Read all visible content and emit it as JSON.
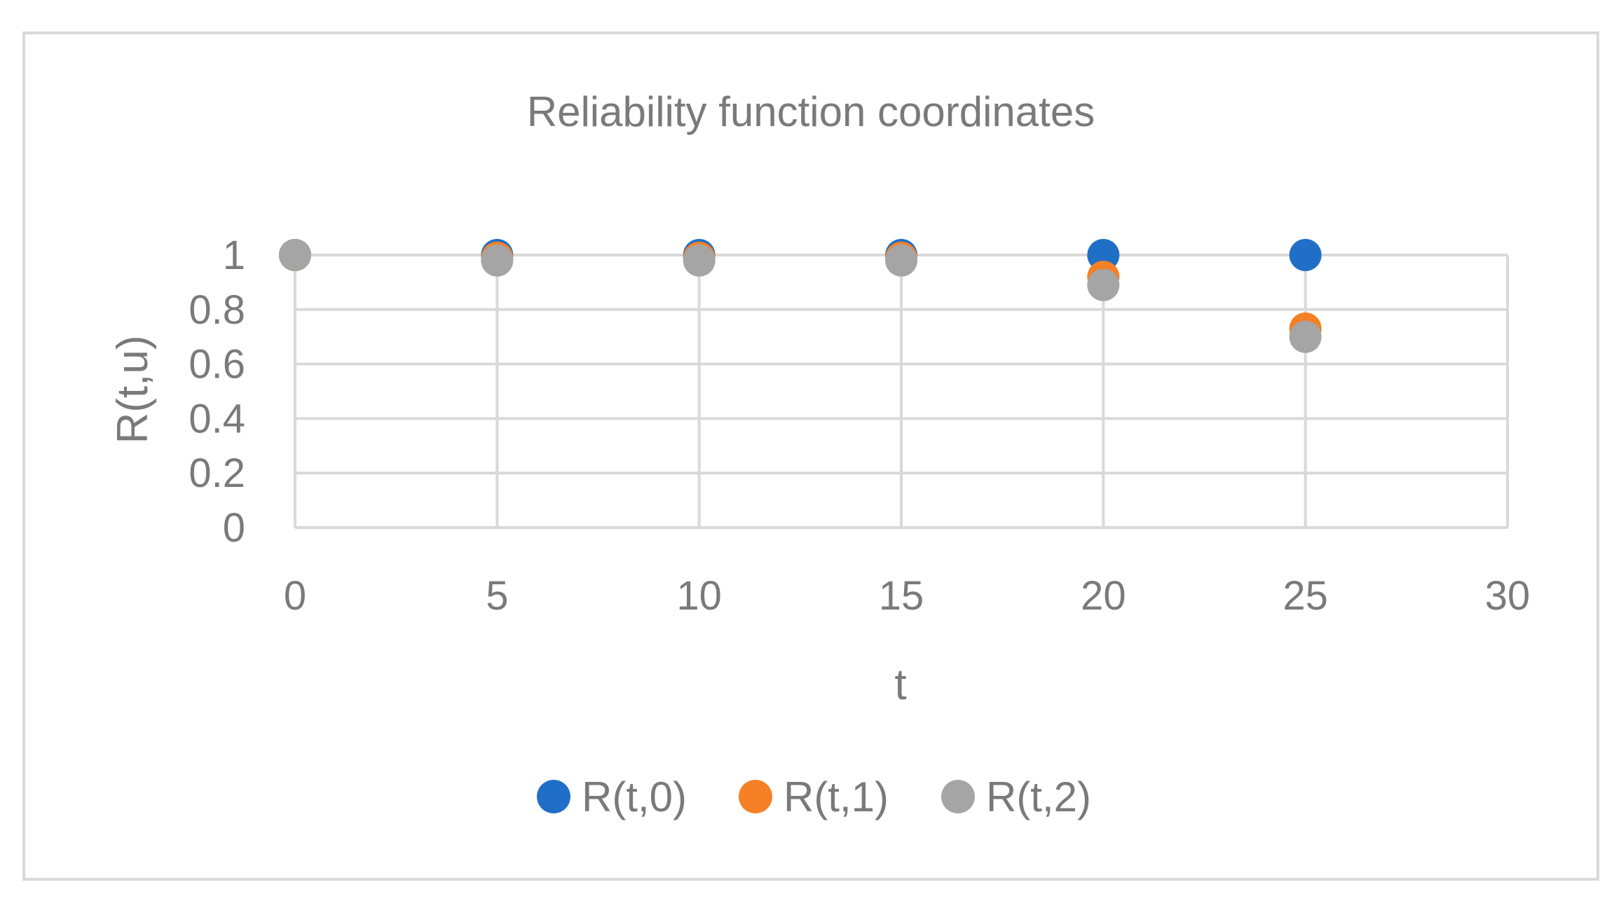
{
  "chart_data": {
    "type": "scatter",
    "title": "Reliability function coordinates",
    "xlabel": "t",
    "ylabel": "R(t,u)",
    "xlim": [
      0,
      30
    ],
    "ylim": [
      0,
      1
    ],
    "x_ticks": [
      0,
      5,
      10,
      15,
      20,
      25,
      30
    ],
    "x_tick_labels": [
      "0",
      "5",
      "10",
      "15",
      "20",
      "25",
      "30"
    ],
    "y_ticks": [
      0,
      0.2,
      0.4,
      0.6,
      0.8,
      1
    ],
    "y_tick_labels": [
      "0",
      "0.2",
      "0.4",
      "0.6",
      "0.8",
      "1"
    ],
    "grid": true,
    "legend_position": "bottom",
    "series": [
      {
        "name": "R(t,0)",
        "color": "#1f6fc6",
        "x": [
          0,
          5,
          10,
          15,
          20,
          25
        ],
        "y": [
          1,
          1,
          1,
          1,
          1,
          1
        ]
      },
      {
        "name": "R(t,1)",
        "color": "#f58025",
        "x": [
          0,
          5,
          10,
          15,
          20,
          25
        ],
        "y": [
          1,
          0.99,
          0.99,
          0.99,
          0.92,
          0.73
        ]
      },
      {
        "name": "R(t,2)",
        "color": "#a5a5a5",
        "x": [
          0,
          5,
          10,
          15,
          20,
          25
        ],
        "y": [
          1,
          0.98,
          0.98,
          0.98,
          0.89,
          0.7
        ]
      }
    ]
  }
}
